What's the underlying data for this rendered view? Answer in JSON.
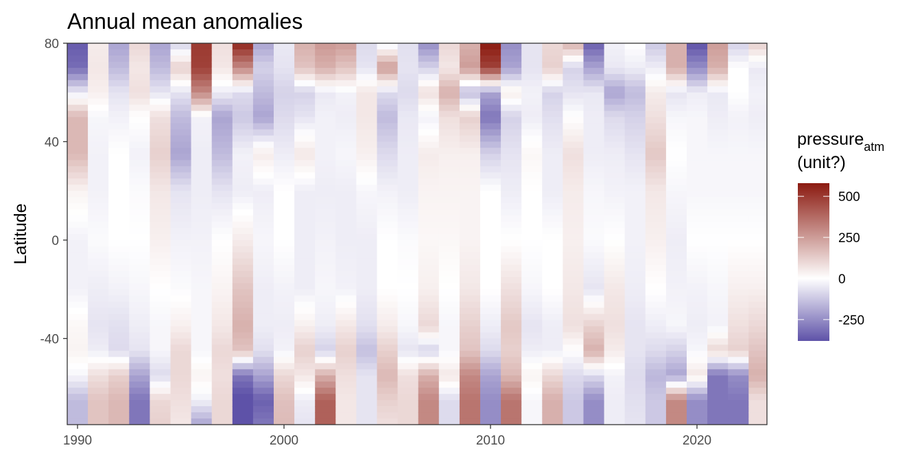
{
  "chart_data": {
    "type": "heatmap",
    "title": "Annual mean anomalies",
    "xlabel": "",
    "ylabel": "Latitude",
    "x_ticks": [
      1990,
      2000,
      2010,
      2020
    ],
    "y_ticks": [
      80,
      40,
      0,
      -40
    ],
    "x_years": [
      1990,
      1991,
      1992,
      1993,
      1994,
      1995,
      1996,
      1997,
      1998,
      1999,
      2000,
      2001,
      2002,
      2003,
      2004,
      2005,
      2006,
      2007,
      2008,
      2009,
      2010,
      2011,
      2012,
      2013,
      2014,
      2015,
      2016,
      2017,
      2018,
      2019,
      2020,
      2021,
      2022,
      2023
    ],
    "ylim": [
      -75,
      80
    ],
    "color_scale": {
      "low_color": "#5e52a8",
      "mid_color": "#ffffff",
      "high_color": "#8b1a10",
      "domain": [
        -380,
        580
      ]
    },
    "profile_latitudes": [
      80,
      70,
      60,
      50,
      35,
      20,
      0,
      -20,
      -35,
      -45,
      -55,
      -65,
      -75
    ],
    "profiles": [
      [
        -360,
        -320,
        -50,
        180,
        180,
        30,
        -30,
        -30,
        20,
        30,
        -20,
        -150,
        -150
      ],
      [
        50,
        60,
        40,
        -20,
        -30,
        -30,
        -10,
        -40,
        -60,
        -40,
        80,
        150,
        150
      ],
      [
        -200,
        -150,
        -60,
        -30,
        0,
        0,
        0,
        -30,
        -70,
        -80,
        120,
        180,
        180
      ],
      [
        100,
        60,
        80,
        0,
        -30,
        -10,
        0,
        -20,
        -40,
        -60,
        -200,
        -300,
        -300
      ],
      [
        -200,
        -150,
        -60,
        80,
        120,
        60,
        40,
        0,
        -20,
        -20,
        -80,
        100,
        120
      ],
      [
        -100,
        120,
        -60,
        -150,
        -200,
        -60,
        -30,
        -10,
        40,
        100,
        100,
        80,
        60
      ],
      [
        500,
        480,
        300,
        -30,
        -40,
        -40,
        -30,
        -20,
        -20,
        -20,
        30,
        -30,
        -200
      ],
      [
        80,
        60,
        -40,
        -200,
        -150,
        -60,
        0,
        30,
        60,
        100,
        80,
        100,
        100
      ],
      [
        550,
        300,
        -80,
        -120,
        -30,
        -40,
        50,
        150,
        200,
        150,
        -300,
        -400,
        -400
      ],
      [
        -200,
        -100,
        -150,
        -200,
        50,
        -40,
        -20,
        -40,
        -40,
        -70,
        -200,
        -350,
        -300
      ],
      [
        -50,
        -60,
        -100,
        -80,
        -40,
        0,
        0,
        -30,
        -40,
        -30,
        100,
        160,
        170
      ],
      [
        200,
        150,
        -100,
        -60,
        60,
        -40,
        -40,
        -40,
        40,
        120,
        60,
        -40,
        -60
      ],
      [
        260,
        200,
        -50,
        -30,
        -30,
        -40,
        -30,
        -20,
        -40,
        -100,
        200,
        400,
        400
      ],
      [
        250,
        150,
        -30,
        -40,
        -20,
        -40,
        -40,
        -30,
        60,
        120,
        80,
        60,
        60
      ],
      [
        -80,
        -60,
        60,
        60,
        40,
        -20,
        -40,
        -40,
        -70,
        -140,
        -60,
        -60,
        -60
      ],
      [
        -50,
        250,
        -80,
        -150,
        -80,
        -30,
        0,
        0,
        50,
        120,
        180,
        120,
        80
      ],
      [
        -70,
        -60,
        -80,
        -50,
        -40,
        -40,
        -10,
        0,
        -20,
        -60,
        80,
        100,
        100
      ],
      [
        -250,
        -100,
        80,
        -30,
        50,
        30,
        20,
        40,
        100,
        -100,
        200,
        300,
        300
      ],
      [
        100,
        60,
        200,
        80,
        40,
        30,
        20,
        0,
        -20,
        -20,
        60,
        -80,
        -80
      ],
      [
        200,
        250,
        -150,
        120,
        40,
        30,
        30,
        60,
        120,
        150,
        300,
        350,
        350
      ],
      [
        580,
        480,
        -200,
        -300,
        -100,
        0,
        0,
        0,
        -40,
        -80,
        -200,
        -250,
        -250
      ],
      [
        -250,
        -200,
        50,
        -100,
        -60,
        -40,
        0,
        80,
        140,
        120,
        180,
        350,
        350
      ],
      [
        -60,
        -60,
        -30,
        -40,
        20,
        0,
        0,
        -20,
        -60,
        -40,
        30,
        -20,
        -20
      ],
      [
        100,
        120,
        -100,
        -70,
        -40,
        -40,
        0,
        0,
        -40,
        -40,
        100,
        200,
        200
      ],
      [
        200,
        -100,
        -60,
        0,
        80,
        50,
        40,
        60,
        80,
        0,
        -80,
        -120,
        -120
      ],
      [
        -350,
        -200,
        -50,
        -40,
        -40,
        -20,
        -10,
        -60,
        120,
        200,
        -80,
        -250,
        -250
      ],
      [
        -30,
        -50,
        -200,
        -80,
        -40,
        -30,
        0,
        60,
        80,
        50,
        -30,
        -40,
        -40
      ],
      [
        0,
        -40,
        -150,
        -100,
        -60,
        -30,
        -30,
        -40,
        -60,
        -60,
        -80,
        -70,
        -60
      ],
      [
        -120,
        -40,
        50,
        80,
        140,
        60,
        40,
        0,
        -40,
        -80,
        -160,
        -120,
        -120
      ],
      [
        200,
        200,
        -60,
        -20,
        0,
        -20,
        -40,
        -30,
        -20,
        -100,
        -200,
        300,
        300
      ],
      [
        -380,
        -250,
        -40,
        -20,
        -20,
        -20,
        0,
        -30,
        -40,
        -20,
        60,
        -250,
        -250
      ],
      [
        250,
        200,
        -50,
        -40,
        -20,
        -20,
        0,
        -20,
        -30,
        100,
        -300,
        -300,
        -300
      ],
      [
        -100,
        0,
        0,
        -30,
        -20,
        -20,
        0,
        40,
        80,
        120,
        -250,
        -300,
        -300
      ],
      [
        120,
        -50,
        -30,
        -40,
        -20,
        -20,
        0,
        40,
        100,
        150,
        200,
        80,
        80
      ]
    ],
    "legend": {
      "title_main": "pressure",
      "title_sub": "atm",
      "title_line2": "(unit?)",
      "ticks": [
        500,
        250,
        0,
        -250
      ],
      "tick_labels": [
        "500",
        "250",
        "0",
        "-250"
      ]
    }
  }
}
